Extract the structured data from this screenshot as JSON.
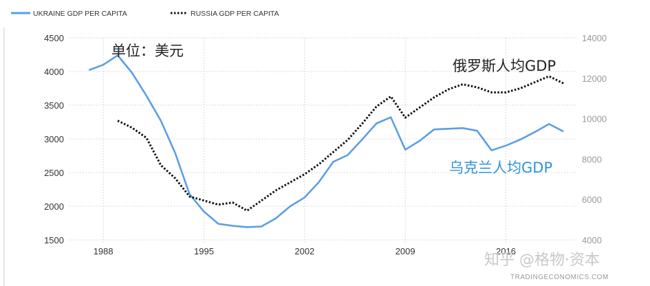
{
  "colors": {
    "ukraine": "#5b9ee5",
    "russia": "#111111",
    "grid": "#d8d8d8",
    "annotation_ukraine": "#2f93d8"
  },
  "legend": [
    {
      "label": "UKRAINE GDP PER CAPITA",
      "style": "solid"
    },
    {
      "label": "RUSSIA GDP PER CAPITA",
      "style": "dotted"
    }
  ],
  "annotations": {
    "unit": "单位：美元",
    "russia": "俄罗斯人均GDP",
    "ukraine": "乌克兰人均GDP"
  },
  "watermark": "知乎 @格物·资本",
  "credit": "TRADINGECONOMICS.COM",
  "chart_data": {
    "type": "line",
    "x_ticks": [
      1988,
      1995,
      2002,
      2009,
      2016
    ],
    "y_left": {
      "range": [
        1500,
        4500
      ],
      "ticks": [
        1500,
        2000,
        2500,
        3000,
        3500,
        4000,
        4500
      ]
    },
    "y_right": {
      "range": [
        4000,
        14000
      ],
      "ticks": [
        4000,
        6000,
        8000,
        10000,
        12000,
        14000
      ]
    },
    "grid": true,
    "series": [
      {
        "name": "UKRAINE GDP PER CAPITA",
        "axis": "left",
        "x": [
          1987,
          1988,
          1989,
          1990,
          1991,
          1992,
          1993,
          1994,
          1995,
          1996,
          1997,
          1998,
          1999,
          2000,
          2001,
          2002,
          2003,
          2004,
          2005,
          2006,
          2007,
          2008,
          2009,
          2010,
          2011,
          2012,
          2013,
          2014,
          2015,
          2016,
          2017,
          2018,
          2019,
          2020
        ],
        "y": [
          4020,
          4100,
          4240,
          3980,
          3640,
          3270,
          2790,
          2180,
          1920,
          1740,
          1710,
          1690,
          1700,
          1820,
          2000,
          2130,
          2360,
          2660,
          2760,
          2990,
          3230,
          3320,
          2840,
          2970,
          3140,
          3150,
          3160,
          3120,
          2830,
          2900,
          2990,
          3100,
          3220,
          3110
        ]
      },
      {
        "name": "RUSSIA GDP PER CAPITA",
        "axis": "right",
        "x": [
          1989,
          1990,
          1991,
          1992,
          1993,
          1994,
          1995,
          1996,
          1997,
          1998,
          1999,
          2000,
          2001,
          2002,
          2003,
          2004,
          2005,
          2006,
          2007,
          2008,
          2009,
          2010,
          2011,
          2012,
          2013,
          2014,
          2015,
          2016,
          2017,
          2018,
          2019,
          2020
        ],
        "y": [
          9900,
          9550,
          9050,
          7700,
          7050,
          6150,
          5950,
          5750,
          5850,
          5450,
          5950,
          6450,
          6850,
          7250,
          7750,
          8350,
          8950,
          9750,
          10600,
          11100,
          10050,
          10550,
          11050,
          11450,
          11700,
          11550,
          11300,
          11300,
          11500,
          11800,
          12100,
          11750
        ]
      }
    ]
  }
}
